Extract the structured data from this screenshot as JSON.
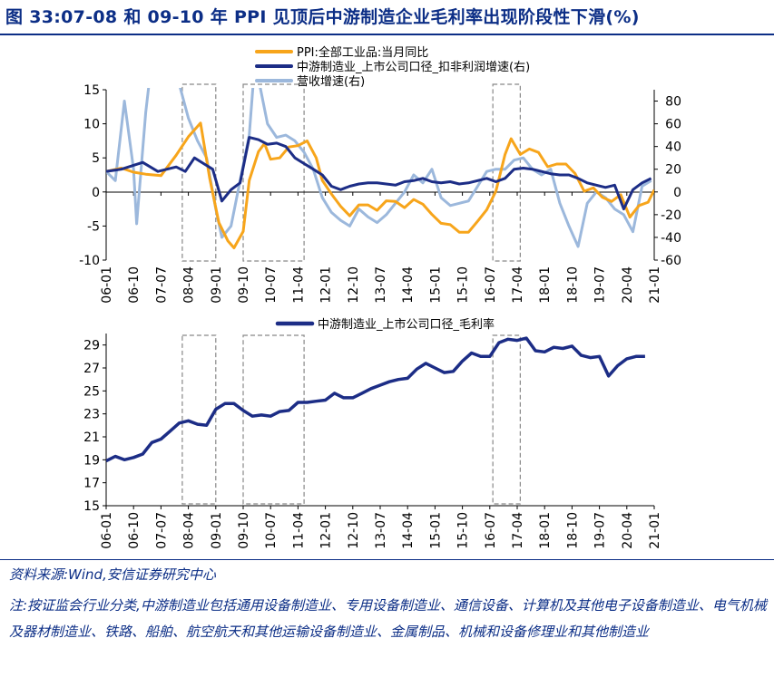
{
  "figure": {
    "title": "图 33:07-08 和 09-10 年 PPI 见顶后中游制造企业毛利率出现阶段性下滑(%)",
    "source": "资料来源:Wind,安信证券研究中心",
    "note": "注:按证监会行业分类,中游制造业包括通用设备制造业、专用设备制造业、通信设备、计算机及其他电子设备制造业、电气机械及器材制造业、铁路、船舶、航空航天和其他运输设备制造业、金属制品、机械和设备修理业和其他制造业"
  },
  "colors": {
    "title": "#0c2e86",
    "ppi": "#f7a51b",
    "profit": "#1c2d86",
    "revenue": "#9cb8dc",
    "box": "#888888"
  },
  "chart_data": [
    {
      "type": "line",
      "x_ticks": [
        "06-01",
        "06-10",
        "07-07",
        "08-04",
        "09-01",
        "09-10",
        "10-07",
        "11-04",
        "12-01",
        "12-10",
        "13-07",
        "14-04",
        "15-01",
        "15-10",
        "16-07",
        "17-04",
        "18-01",
        "18-10",
        "19-07",
        "20-04",
        "21-01"
      ],
      "xlim": [
        "2006-01",
        "2021-01"
      ],
      "ylim_left": [
        -10,
        15
      ],
      "yticks_left": [
        -10,
        -5,
        0,
        5,
        10,
        15
      ],
      "ylim_right": [
        -60,
        90
      ],
      "yticks_right": [
        -60,
        -40,
        -20,
        0,
        20,
        40,
        60,
        80
      ],
      "legend": "top-center",
      "shaded_periods": [
        [
          "2008-02",
          "2009-01"
        ],
        [
          "2009-10",
          "2011-06"
        ],
        [
          "2016-08",
          "2017-05"
        ]
      ],
      "series": [
        {
          "name": "PPI:全部工业品:当月同比",
          "axis": "left",
          "x": [
            "2006-01",
            "2006-06",
            "2006-10",
            "2007-02",
            "2007-07",
            "2007-12",
            "2008-04",
            "2008-08",
            "2008-11",
            "2009-02",
            "2009-05",
            "2009-07",
            "2009-10",
            "2009-12",
            "2010-03",
            "2010-05",
            "2010-07",
            "2010-10",
            "2011-01",
            "2011-04",
            "2011-07",
            "2011-10",
            "2011-12",
            "2012-03",
            "2012-06",
            "2012-09",
            "2012-12",
            "2013-03",
            "2013-06",
            "2013-09",
            "2013-12",
            "2014-03",
            "2014-06",
            "2014-09",
            "2014-12",
            "2015-03",
            "2015-06",
            "2015-09",
            "2015-12",
            "2016-03",
            "2016-06",
            "2016-09",
            "2016-12",
            "2017-02",
            "2017-05",
            "2017-08",
            "2017-11",
            "2018-02",
            "2018-05",
            "2018-08",
            "2018-11",
            "2019-02",
            "2019-05",
            "2019-08",
            "2019-11",
            "2020-02",
            "2020-05",
            "2020-08",
            "2020-11",
            "2021-01"
          ],
          "values": [
            3.0,
            3.5,
            2.9,
            2.6,
            2.4,
            5.4,
            8.1,
            10.1,
            2.0,
            -4.5,
            -7.2,
            -8.2,
            -5.8,
            1.7,
            5.9,
            7.1,
            4.8,
            5.0,
            6.6,
            6.8,
            7.5,
            5.0,
            1.7,
            -0.3,
            -2.1,
            -3.5,
            -1.9,
            -1.9,
            -2.7,
            -1.3,
            -1.4,
            -2.3,
            -1.1,
            -1.8,
            -3.3,
            -4.6,
            -4.8,
            -5.9,
            -5.9,
            -4.3,
            -2.6,
            0.1,
            5.5,
            7.8,
            5.5,
            6.3,
            5.8,
            3.7,
            4.1,
            4.1,
            2.7,
            0.1,
            0.6,
            -0.8,
            -1.4,
            -0.4,
            -3.7,
            -2.0,
            -1.5,
            0.3
          ]
        },
        {
          "name": "中游制造业_上市公司口径_扣非利润增速(右)",
          "axis": "right",
          "x": [
            "2006-01",
            "2006-06",
            "2007-01",
            "2007-06",
            "2007-12",
            "2008-03",
            "2008-06",
            "2008-09",
            "2008-12",
            "2009-03",
            "2009-06",
            "2009-09",
            "2009-12",
            "2010-03",
            "2010-06",
            "2010-09",
            "2010-12",
            "2011-03",
            "2011-06",
            "2011-09",
            "2011-12",
            "2012-03",
            "2012-06",
            "2012-09",
            "2012-12",
            "2013-03",
            "2013-06",
            "2013-09",
            "2013-12",
            "2014-03",
            "2014-06",
            "2014-09",
            "2014-12",
            "2015-03",
            "2015-06",
            "2015-09",
            "2015-12",
            "2016-03",
            "2016-06",
            "2016-09",
            "2016-12",
            "2017-03",
            "2017-06",
            "2017-09",
            "2017-12",
            "2018-03",
            "2018-06",
            "2018-09",
            "2018-12",
            "2019-03",
            "2019-06",
            "2019-09",
            "2019-12",
            "2020-03",
            "2020-06",
            "2020-09",
            "2020-12"
          ],
          "values": [
            18,
            20,
            26,
            18,
            22,
            18,
            30,
            25,
            20,
            -8,
            2,
            8,
            48,
            46,
            42,
            43,
            40,
            30,
            25,
            20,
            15,
            5,
            2,
            5,
            7,
            8,
            8,
            7,
            6,
            9,
            10,
            12,
            9,
            8,
            9,
            7,
            8,
            10,
            12,
            9,
            12,
            20,
            21,
            20,
            18,
            16,
            15,
            15,
            12,
            8,
            6,
            4,
            6,
            -15,
            2,
            8,
            12
          ]
        },
        {
          "name": "营收增速(右)",
          "axis": "right",
          "x": [
            "2006-01",
            "2006-04",
            "2006-07",
            "2006-10",
            "2006-11",
            "2007-02",
            "2007-05",
            "2007-08",
            "2007-10",
            "2008-01",
            "2008-04",
            "2008-07",
            "2008-10",
            "2009-01",
            "2009-03",
            "2009-06",
            "2009-09",
            "2009-12",
            "2010-02",
            "2010-03",
            "2010-06",
            "2010-09",
            "2010-12",
            "2011-03",
            "2011-06",
            "2011-09",
            "2011-12",
            "2012-03",
            "2012-06",
            "2012-09",
            "2012-12",
            "2013-03",
            "2013-06",
            "2013-09",
            "2013-12",
            "2014-03",
            "2014-06",
            "2014-09",
            "2014-12",
            "2015-03",
            "2015-06",
            "2015-09",
            "2015-12",
            "2016-03",
            "2016-06",
            "2016-09",
            "2016-12",
            "2017-03",
            "2017-06",
            "2017-09",
            "2017-12",
            "2018-03",
            "2018-06",
            "2018-09",
            "2018-12",
            "2019-03",
            "2019-06",
            "2019-09",
            "2019-12",
            "2020-03",
            "2020-06",
            "2020-09",
            "2020-12"
          ],
          "values": [
            18,
            10,
            80,
            20,
            -28,
            70,
            140,
            120,
            100,
            95,
            65,
            45,
            30,
            -15,
            -40,
            -30,
            10,
            50,
            120,
            100,
            60,
            48,
            50,
            45,
            35,
            20,
            -5,
            -18,
            -25,
            -30,
            -15,
            -22,
            -27,
            -20,
            -10,
            0,
            15,
            8,
            20,
            -5,
            -12,
            -10,
            -8,
            5,
            18,
            20,
            20,
            28,
            30,
            20,
            15,
            20,
            -10,
            -30,
            -48,
            -10,
            0,
            -5,
            -15,
            -20,
            -35,
            5,
            10
          ]
        }
      ]
    },
    {
      "type": "line",
      "x_ticks": [
        "06-01",
        "06-10",
        "07-07",
        "08-04",
        "09-01",
        "09-10",
        "10-07",
        "11-04",
        "12-01",
        "12-10",
        "13-07",
        "14-04",
        "15-01",
        "15-10",
        "16-07",
        "17-04",
        "18-01",
        "18-10",
        "19-07",
        "20-04",
        "21-01"
      ],
      "xlim": [
        "2006-01",
        "2021-01"
      ],
      "ylim": [
        15,
        30
      ],
      "yticks": [
        15,
        17,
        19,
        21,
        23,
        25,
        27,
        29
      ],
      "legend": "top-center",
      "shaded_periods": [
        [
          "2008-02",
          "2009-01"
        ],
        [
          "2009-10",
          "2011-06"
        ],
        [
          "2016-08",
          "2017-05"
        ]
      ],
      "series": [
        {
          "name": "中游制造业_上市公司口径_毛利率",
          "x": [
            "2006-01",
            "2006-04",
            "2006-07",
            "2006-10",
            "2007-01",
            "2007-04",
            "2007-07",
            "2007-10",
            "2008-01",
            "2008-04",
            "2008-07",
            "2008-10",
            "2009-01",
            "2009-04",
            "2009-07",
            "2009-10",
            "2010-01",
            "2010-04",
            "2010-07",
            "2010-10",
            "2011-01",
            "2011-04",
            "2011-07",
            "2011-10",
            "2012-01",
            "2012-04",
            "2012-07",
            "2012-10",
            "2013-01",
            "2013-04",
            "2013-07",
            "2013-10",
            "2014-01",
            "2014-04",
            "2014-07",
            "2014-10",
            "2015-01",
            "2015-04",
            "2015-07",
            "2015-10",
            "2016-01",
            "2016-04",
            "2016-07",
            "2016-10",
            "2017-01",
            "2017-04",
            "2017-07",
            "2017-10",
            "2018-01",
            "2018-04",
            "2018-07",
            "2018-10",
            "2019-01",
            "2019-04",
            "2019-07",
            "2019-10",
            "2020-01",
            "2020-04",
            "2020-07",
            "2020-10"
          ],
          "values": [
            18.9,
            19.3,
            19.0,
            19.2,
            19.5,
            20.5,
            20.8,
            21.5,
            22.2,
            22.4,
            22.1,
            22.0,
            23.4,
            23.9,
            23.9,
            23.3,
            22.8,
            22.9,
            22.8,
            23.2,
            23.3,
            24.0,
            24.0,
            24.1,
            24.2,
            24.8,
            24.4,
            24.4,
            24.8,
            25.2,
            25.5,
            25.8,
            26.0,
            26.1,
            26.9,
            27.4,
            27.0,
            26.6,
            26.7,
            27.6,
            28.3,
            28.0,
            28.0,
            29.2,
            29.5,
            29.4,
            29.6,
            28.5,
            28.4,
            28.8,
            28.7,
            28.9,
            28.1,
            27.9,
            28.0,
            26.3,
            27.2,
            27.8,
            28.0,
            28.0
          ]
        }
      ]
    }
  ]
}
